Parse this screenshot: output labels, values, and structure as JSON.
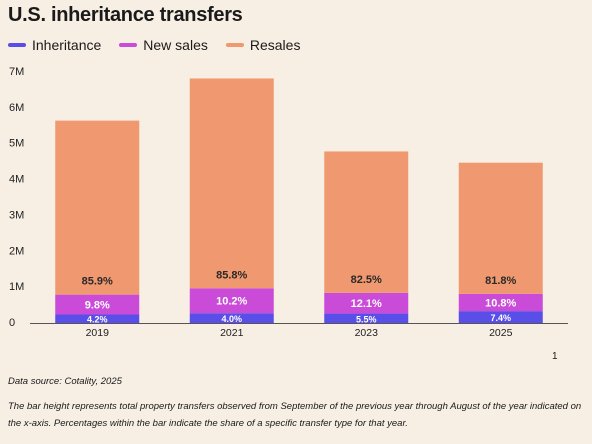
{
  "colors": {
    "inheritance": "#5a4ee8",
    "new_sales": "#c94bd8",
    "resales": "#f0986f",
    "background": "#f7efe4"
  },
  "footnote_marker": "1",
  "source": "Data source: Cotality, 2025",
  "note": "The bar height represents total property transfers observed from September of the previous year through August of the year indicated on the x-axis. Percentages within the bar indicate the share of a specific transfer type for that year.",
  "chart_data": {
    "type": "bar",
    "stacked": true,
    "title": "U.S. inheritance transfers",
    "categories": [
      "2019",
      "2021",
      "2023",
      "2025"
    ],
    "totals": [
      5.65,
      6.82,
      4.78,
      4.47
    ],
    "ylim": [
      0,
      7
    ],
    "yticks": [
      0,
      1,
      2,
      3,
      4,
      5,
      6,
      7
    ],
    "ytick_labels": [
      "0",
      "1M",
      "2M",
      "3M",
      "4M",
      "5M",
      "6M",
      "7M"
    ],
    "legend_position": "top-left",
    "series": [
      {
        "name": "Inheritance",
        "share_labels": [
          "4.2%",
          "4.0%",
          "5.5%",
          "7.4%"
        ],
        "shares": [
          4.2,
          4.0,
          5.5,
          7.4
        ]
      },
      {
        "name": "New sales",
        "share_labels": [
          "9.8%",
          "10.2%",
          "12.1%",
          "10.8%"
        ],
        "shares": [
          9.8,
          10.2,
          12.1,
          10.8
        ]
      },
      {
        "name": "Resales",
        "share_labels": [
          "85.9%",
          "85.8%",
          "82.5%",
          "81.8%"
        ],
        "shares": [
          85.9,
          85.8,
          82.5,
          81.8
        ]
      }
    ]
  }
}
